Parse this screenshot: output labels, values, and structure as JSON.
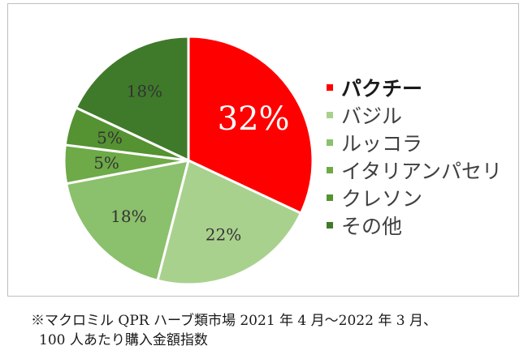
{
  "chart_data": {
    "type": "pie",
    "categories": [
      "パクチー",
      "バジル",
      "ルッコラ",
      "イタリアンパセリ",
      "クレソン",
      "その他"
    ],
    "values": [
      32,
      22,
      18,
      5,
      5,
      18
    ],
    "labels": [
      "32%",
      "22%",
      "18%",
      "5%",
      "5%",
      "18%"
    ],
    "colors": [
      "#ff0000",
      "#a9d18e",
      "#8bc06c",
      "#6eaa48",
      "#559232",
      "#3f7a2a"
    ],
    "start_angle_deg": 0,
    "direction": "clockwise",
    "legend_position": "right"
  },
  "footnote": {
    "line1": "※マクロミル QPR ハーブ類市場 2021 年 4 月～2022 年 3 月、",
    "line2": "100 人あたり購入金額指数"
  }
}
